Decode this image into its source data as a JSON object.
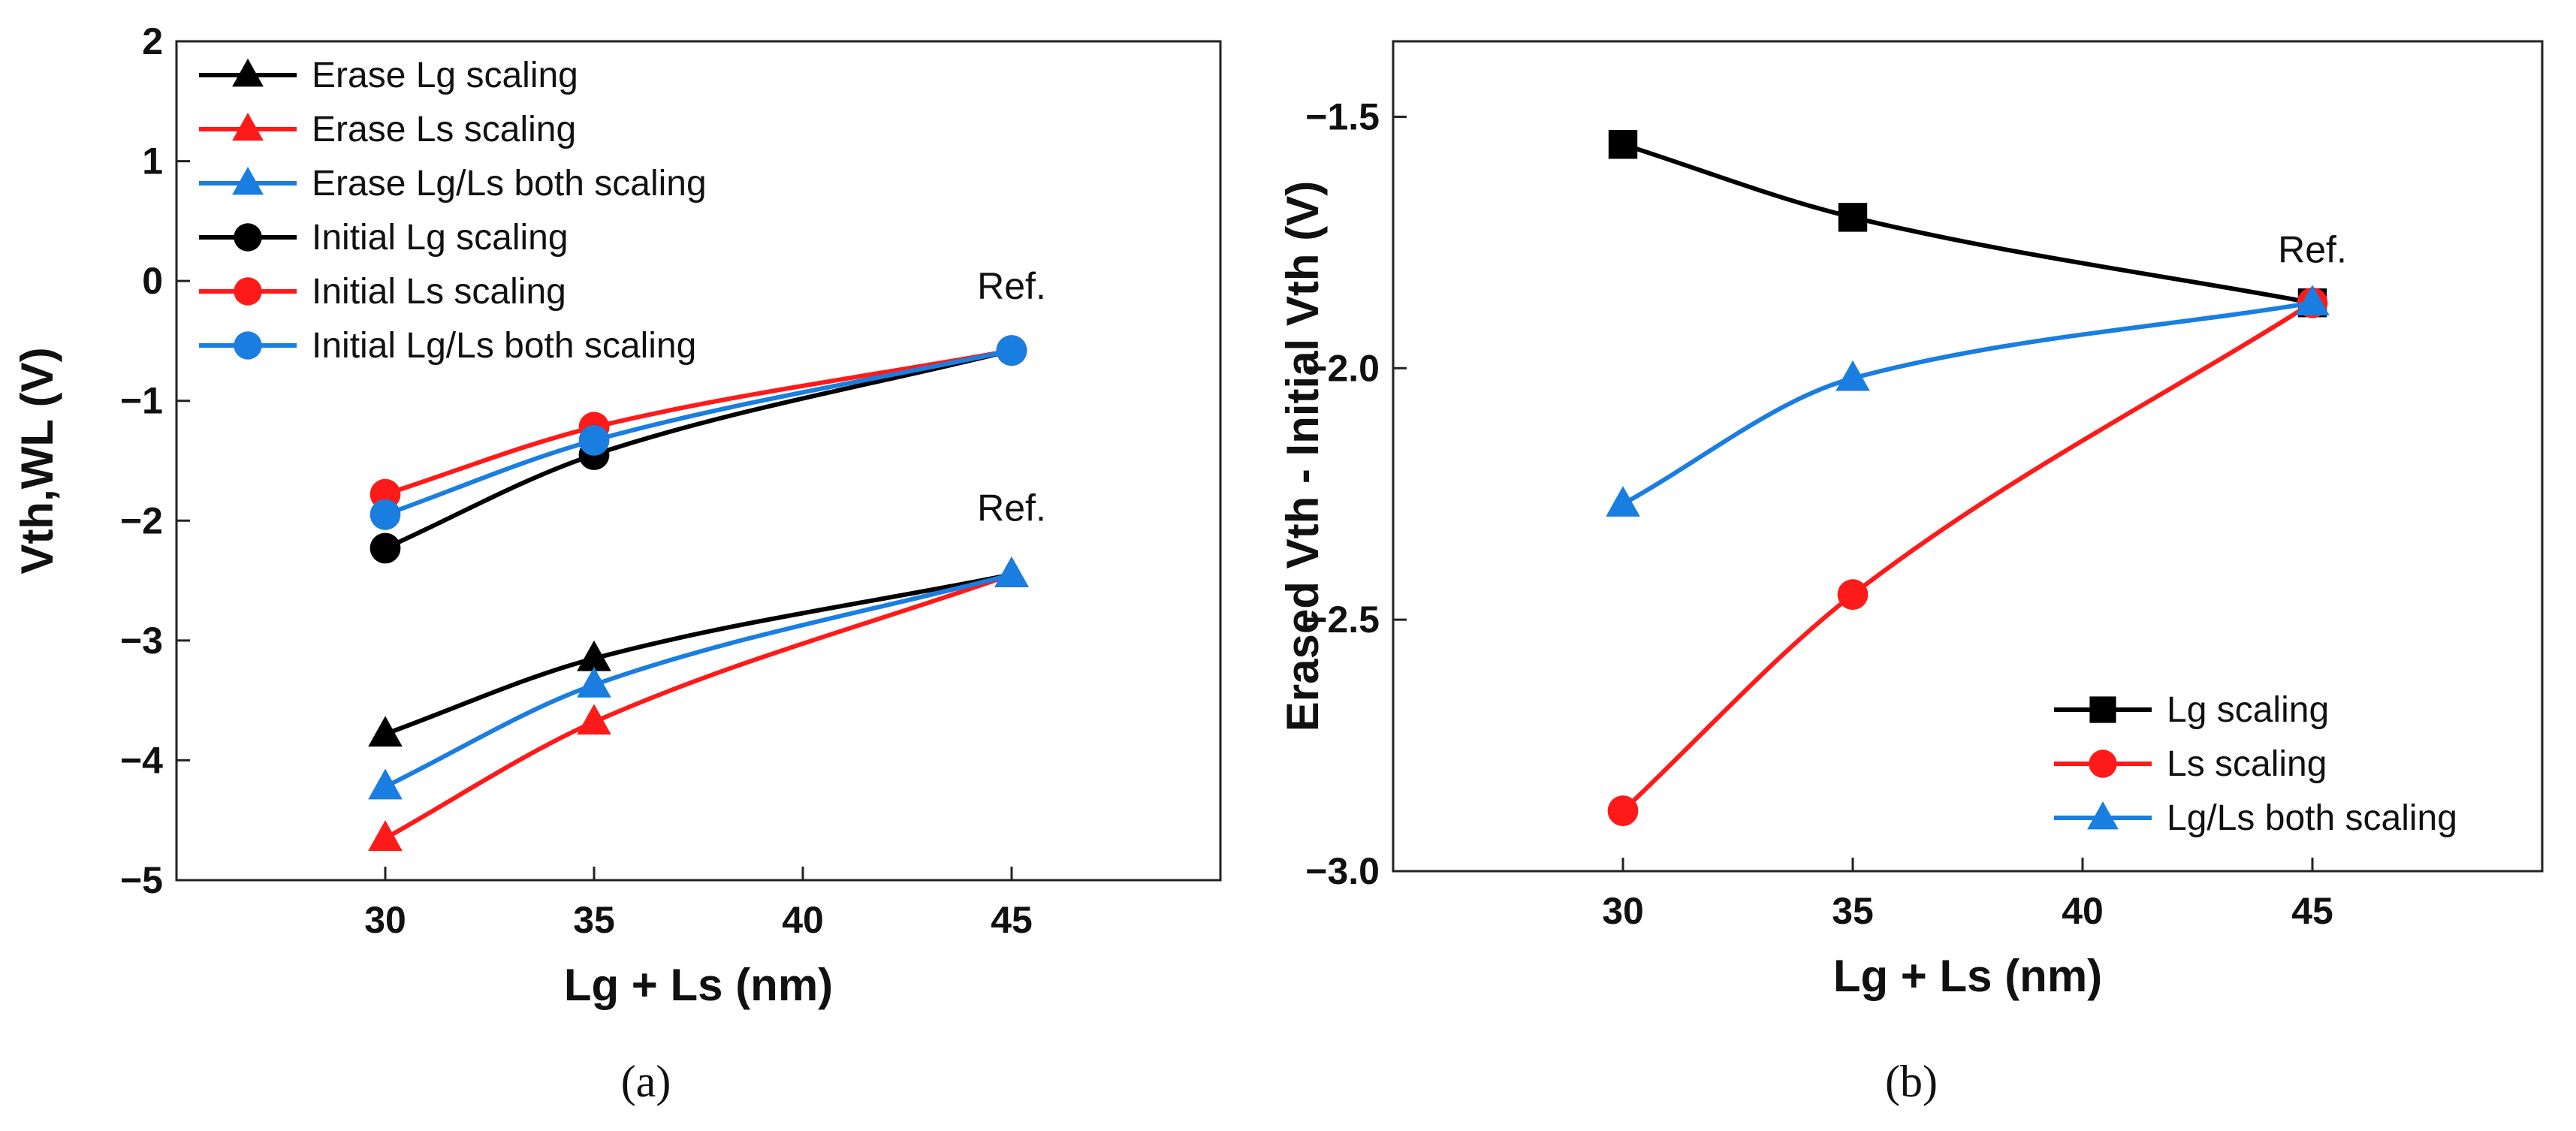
{
  "chart_data": [
    {
      "type": "line",
      "caption": "(a)",
      "xlabel": "Lg + Ls (nm)",
      "ylabel": "Vth,WL (V)",
      "xlim": [
        25,
        50
      ],
      "ylim": [
        -5,
        2
      ],
      "xticks": [
        "30",
        "35",
        "40",
        "45"
      ],
      "yticks": [
        "−5",
        "−4",
        "−3",
        "−2",
        "−1",
        "0",
        "1",
        "2"
      ],
      "x": [
        30,
        35,
        45
      ],
      "series": [
        {
          "name": "Erase Lg scaling",
          "color": "#000000",
          "marker": "triangle",
          "values": [
            -3.78,
            -3.15,
            -2.45
          ]
        },
        {
          "name": "Erase Ls scaling",
          "color": "#ff1a1a",
          "marker": "triangle",
          "values": [
            -4.65,
            -3.68,
            -2.45
          ]
        },
        {
          "name": "Erase Lg/Ls both scaling",
          "color": "#1a7ee0",
          "marker": "triangle",
          "values": [
            -4.22,
            -3.37,
            -2.45
          ]
        },
        {
          "name": "Initial Lg scaling",
          "color": "#000000",
          "marker": "circle",
          "values": [
            -2.23,
            -1.45,
            -0.58
          ]
        },
        {
          "name": "Initial Ls scaling",
          "color": "#ff1a1a",
          "marker": "circle",
          "values": [
            -1.78,
            -1.22,
            -0.58
          ]
        },
        {
          "name": "Initial Lg/Ls both scaling",
          "color": "#1a7ee0",
          "marker": "circle",
          "values": [
            -1.95,
            -1.33,
            -0.58
          ]
        }
      ],
      "annotations": [
        {
          "text": "Ref.",
          "x": 45,
          "y": -0.15
        },
        {
          "text": "Ref.",
          "x": 45,
          "y": -2.0
        }
      ],
      "legend_position": "top-left"
    },
    {
      "type": "line",
      "caption": "(b)",
      "xlabel": "Lg + Ls (nm)",
      "ylabel": "Erased Vth - Initial Vth (V)",
      "xlim": [
        25,
        50
      ],
      "ylim": [
        -3.0,
        -1.35
      ],
      "xticks": [
        "30",
        "35",
        "40",
        "45"
      ],
      "yticks": [
        "−3.0",
        "−2.5",
        "−2.0",
        "−1.5"
      ],
      "x": [
        30,
        35,
        45
      ],
      "series": [
        {
          "name": "Lg scaling",
          "color": "#000000",
          "marker": "square",
          "values": [
            -1.555,
            -1.7,
            -1.87
          ]
        },
        {
          "name": "Ls scaling",
          "color": "#ff1a1a",
          "marker": "circle",
          "values": [
            -2.88,
            -2.45,
            -1.87
          ]
        },
        {
          "name": "Lg/Ls both scaling",
          "color": "#1a7ee0",
          "marker": "triangle",
          "values": [
            -2.27,
            -2.02,
            -1.87
          ]
        }
      ],
      "annotations": [
        {
          "text": "Ref.",
          "x": 45,
          "y": -1.79
        }
      ],
      "legend_position": "bottom-right"
    }
  ]
}
